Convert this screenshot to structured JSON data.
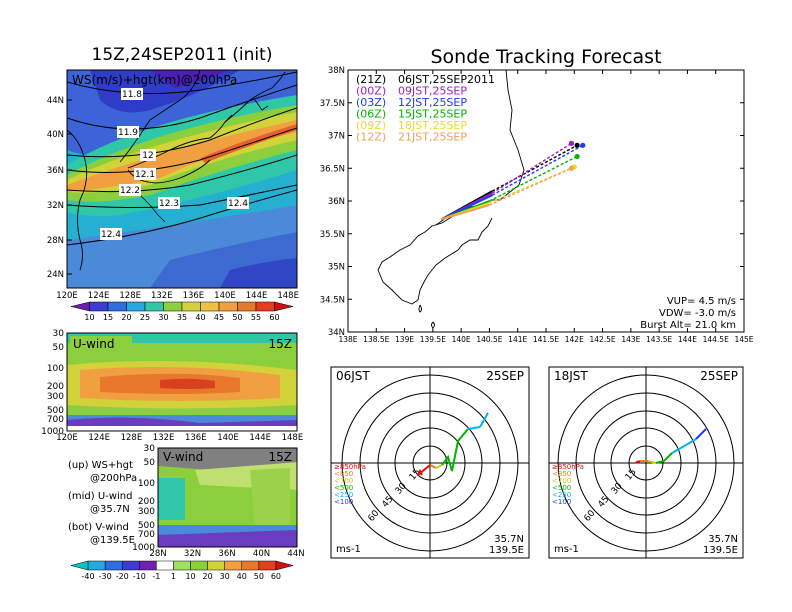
{
  "left_panel": {
    "title": "15Z,24SEP2011 (init)",
    "map_label": "WS(m/s)+hgt(km)@200hPa",
    "lat_ticks": [
      "44N",
      "40N",
      "36N",
      "32N",
      "28N",
      "24N"
    ],
    "lon_ticks": [
      "120E",
      "124E",
      "128E",
      "132E",
      "136E",
      "140E",
      "144E",
      "148E"
    ],
    "contour_labels": [
      "11.8",
      "11.9",
      "12",
      "12.1",
      "12.2",
      "12.3",
      "12.4",
      "12.4"
    ],
    "ws_colorbar": [
      "10",
      "15",
      "20",
      "25",
      "30",
      "35",
      "40",
      "45",
      "50",
      "55",
      "60"
    ]
  },
  "u_panel": {
    "label": "U-wind",
    "time": "15Z",
    "p_ticks": [
      "30",
      "50",
      "100",
      "200",
      "300",
      "500",
      "700",
      "1000"
    ],
    "lon_ticks": [
      "120E",
      "124E",
      "128E",
      "132E",
      "136E",
      "140E",
      "144E",
      "148E"
    ]
  },
  "v_panel": {
    "label": "V-wind",
    "time": "15Z",
    "p_ticks": [
      "30",
      "50",
      "100",
      "200",
      "300",
      "500",
      "700",
      "1000"
    ],
    "lat_ticks": [
      "28N",
      "32N",
      "36N",
      "40N",
      "44N"
    ]
  },
  "legend_text": {
    "up1": "(up) WS+hgt",
    "up2": "@200hPa",
    "mid1": "(mid) U-wind",
    "mid2": "@35.7N",
    "bot1": "(bot) V-wind",
    "bot2": "@139.5E"
  },
  "uv_colorbar": [
    "-40",
    "-30",
    "-20",
    "-10",
    "-1",
    "1",
    "10",
    "20",
    "30",
    "40",
    "50",
    "60"
  ],
  "tracking": {
    "title": "Sonde Tracking Forecast",
    "lat_ticks": [
      "38N",
      "37.5N",
      "37N",
      "36.5N",
      "36N",
      "35.5N",
      "35N",
      "34.5N",
      "34N"
    ],
    "lon_ticks": [
      "138E",
      "138.5E",
      "139E",
      "139.5E",
      "140E",
      "140.5E",
      "141E",
      "141.5E",
      "142E",
      "142.5E",
      "143E",
      "143.5E",
      "144E",
      "144.5E",
      "145E"
    ],
    "legend": [
      {
        "utc": "(21Z)",
        "jst": "06JST,25SEP2011",
        "color": "#000000"
      },
      {
        "utc": "(00Z)",
        "jst": "09JST,25SEP",
        "color": "#a020c0"
      },
      {
        "utc": "(03Z)",
        "jst": "12JST,25SEP",
        "color": "#1e3cff"
      },
      {
        "utc": "(06Z)",
        "jst": "15JST,25SEP",
        "color": "#00b400"
      },
      {
        "utc": "(09Z)",
        "jst": "18JST,25SEP",
        "color": "#e6dc32"
      },
      {
        "utc": "(12Z)",
        "jst": "21JST,25SEP",
        "color": "#f0a050"
      }
    ],
    "params": [
      "VUP= 4.5 m/s",
      "VDW= -3.0 m/s",
      "Burst Alt= 21.0 km"
    ],
    "tracks": [
      {
        "color": "#000000",
        "lon": 142.05,
        "lat": 36.85
      },
      {
        "color": "#a020c0",
        "lon": 141.95,
        "lat": 36.88
      },
      {
        "color": "#1e3cff",
        "lon": 142.15,
        "lat": 36.85
      },
      {
        "color": "#00b400",
        "lon": 142.05,
        "lat": 36.68
      },
      {
        "color": "#e6dc32",
        "lon": 142.0,
        "lat": 36.52
      },
      {
        "color": "#f0a050",
        "lon": 141.95,
        "lat": 36.5
      }
    ]
  },
  "hodo_left": {
    "time": "06JST",
    "date": "25SEP",
    "ring_labels": [
      "15",
      "30",
      "45",
      "60"
    ],
    "levels": [
      "≥850hPa",
      "<850",
      "<700",
      "<500",
      "<250",
      "<100"
    ],
    "unit": "ms-1",
    "loc1": "35.7N",
    "loc2": "139.5E"
  },
  "hodo_right": {
    "time": "18JST",
    "date": "25SEP",
    "ring_labels": [
      "15",
      "30",
      "45",
      "60"
    ],
    "levels": [
      "≥850hPa",
      "<850",
      "<700",
      "<500",
      "<250",
      "<100"
    ],
    "unit": "ms-1",
    "loc1": "35.7N",
    "loc2": "139.5E"
  },
  "colors": {
    "level_colors": [
      "#e01010",
      "#f07820",
      "#d2c81e",
      "#00b400",
      "#00b4f0",
      "#1e3cff"
    ]
  }
}
